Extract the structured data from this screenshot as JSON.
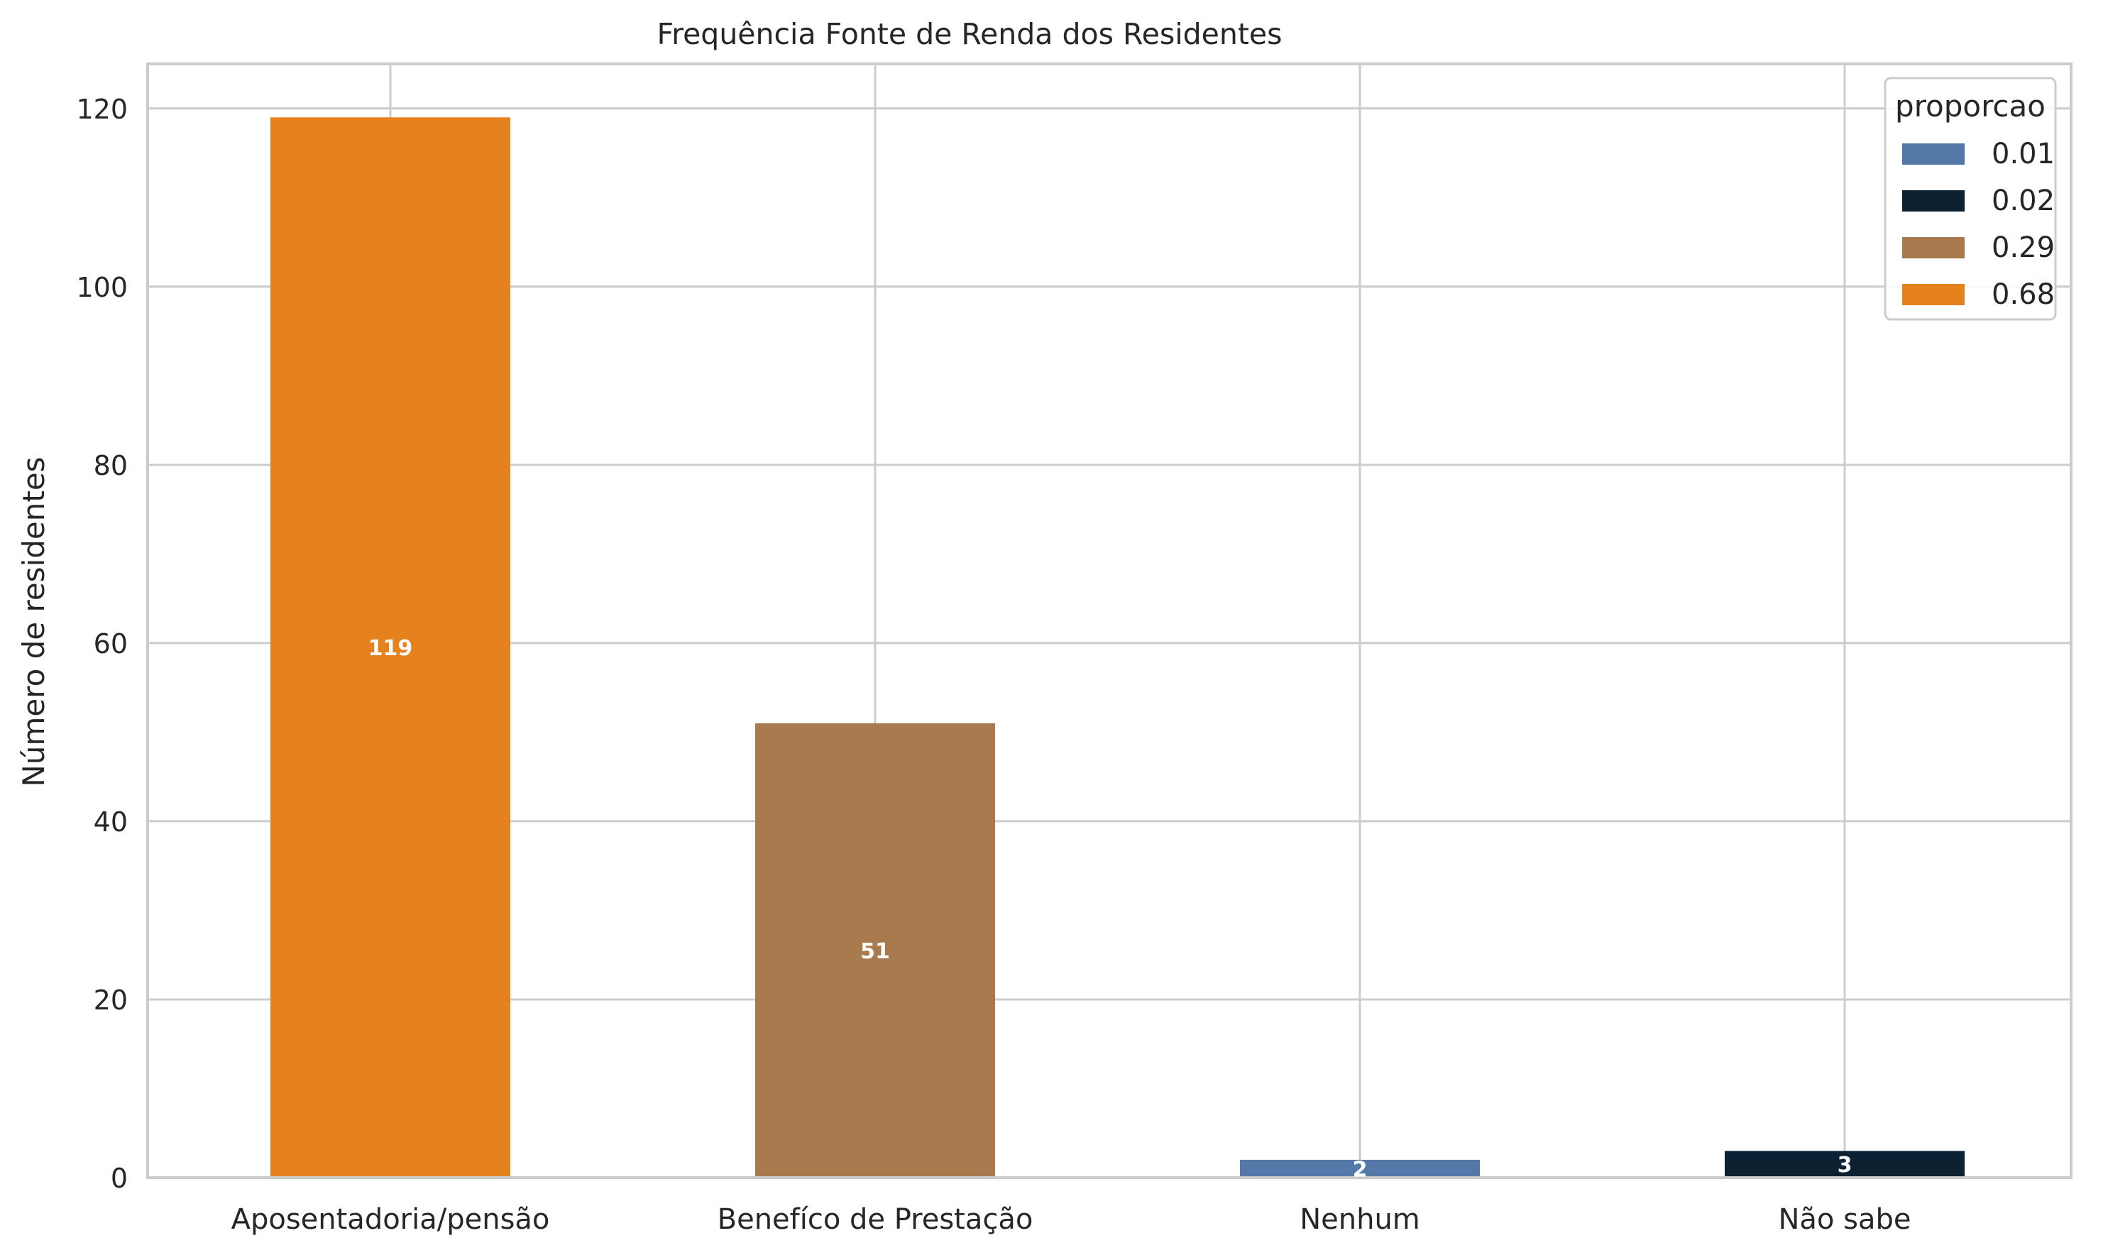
{
  "chart_data": {
    "type": "bar",
    "title": "Frequência Fonte de Renda dos Residentes",
    "xlabel": "",
    "ylabel": "Número de residentes",
    "categories": [
      "Aposentadoria/pensão",
      "Benefíco de Prestação",
      "Nenhum",
      "Não sabe"
    ],
    "values": [
      119,
      51,
      2,
      3
    ],
    "bar_labels": [
      "119",
      "51",
      "2",
      "3"
    ],
    "bar_series_index": [
      3,
      2,
      0,
      1
    ],
    "ylim": [
      0,
      125
    ],
    "yticks": [
      0,
      20,
      40,
      60,
      80,
      100,
      120
    ],
    "grid": true,
    "legend": {
      "title": "proporcao",
      "placement": "top-right",
      "entries": [
        {
          "label": "0.01",
          "color": "#5479A8"
        },
        {
          "label": "0.02",
          "color": "#0C2233"
        },
        {
          "label": "0.29",
          "color": "#A87A4E"
        },
        {
          "label": "0.68",
          "color": "#E5821E"
        }
      ]
    },
    "colors": {
      "grid": "#CCCCCC",
      "frame": "#CCCCCC",
      "text": "#262626",
      "bar_label": "#FFFFFF"
    }
  }
}
